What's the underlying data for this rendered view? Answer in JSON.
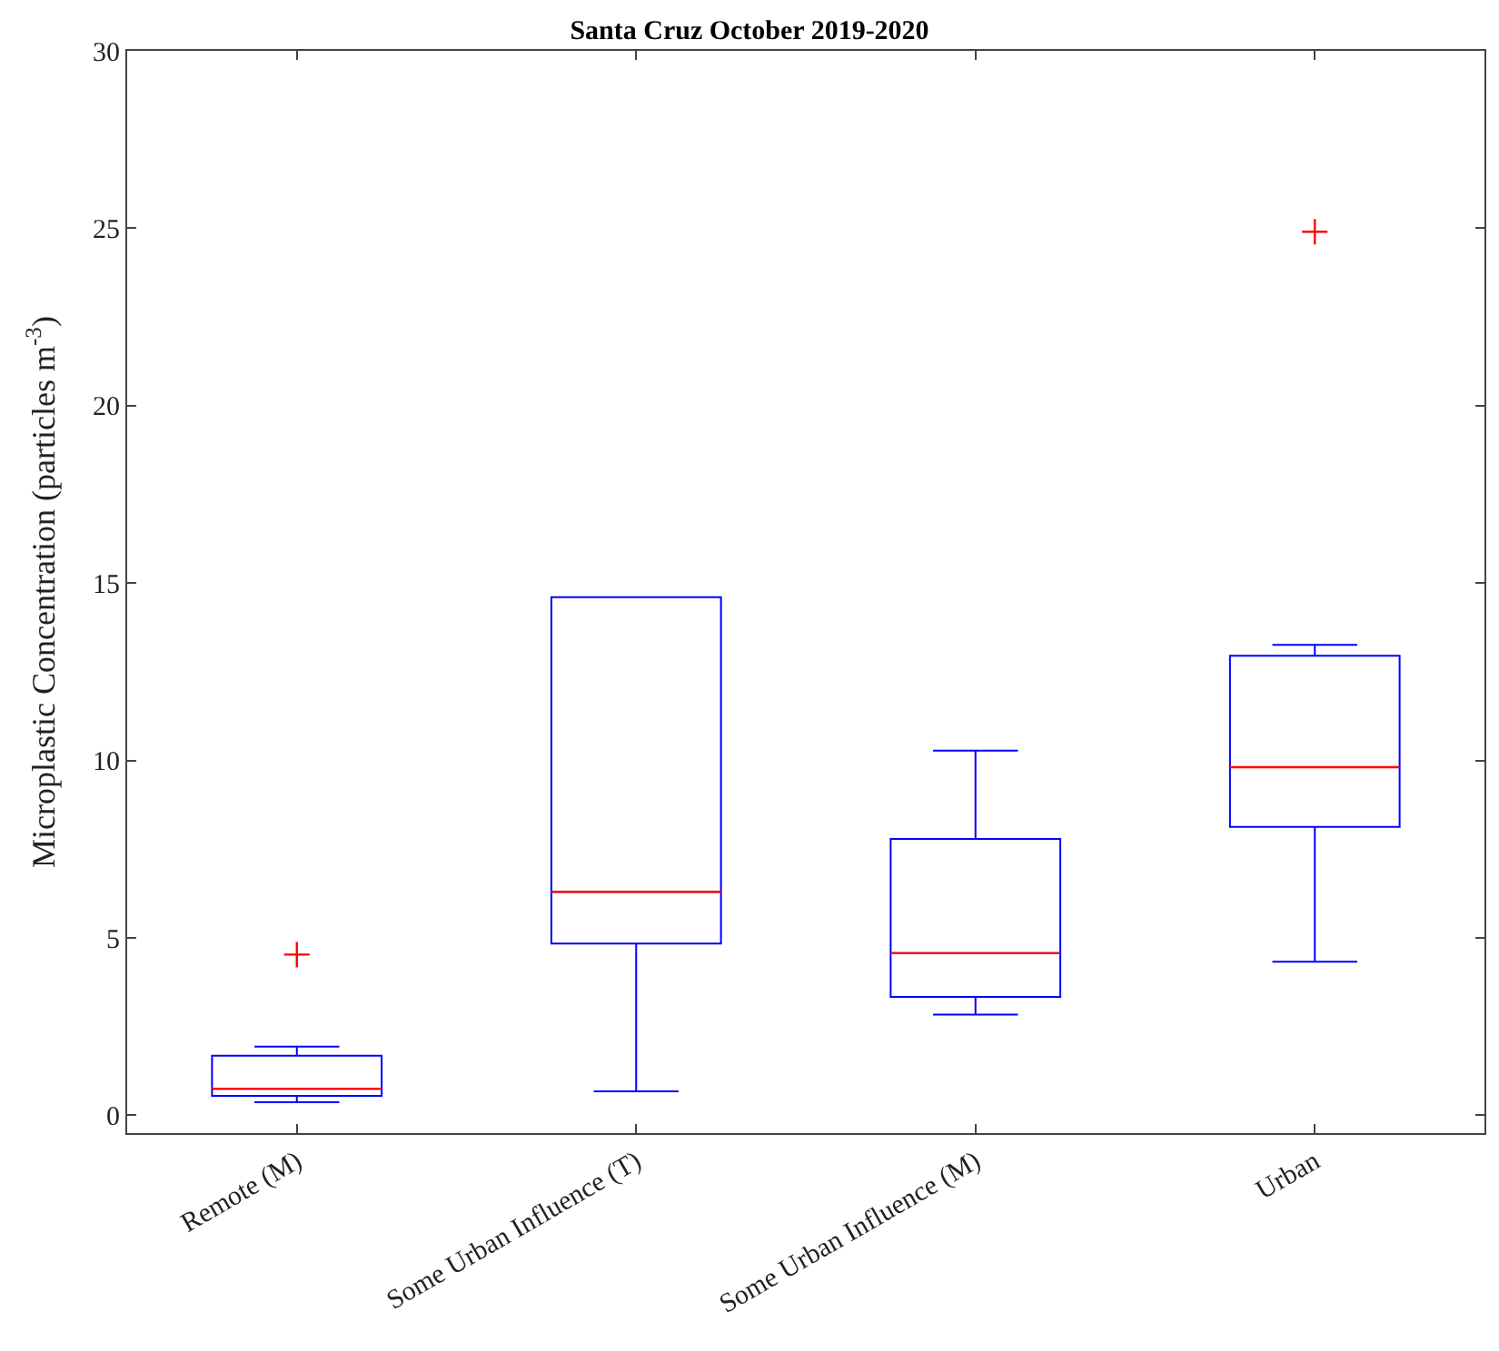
{
  "chart_data": {
    "type": "box",
    "title": "Santa Cruz October 2019-2020",
    "ylabel": "Microplastic Concentration (particles m$^{-3}$)",
    "categories": [
      "Remote (M)",
      "Some Urban Influence (T)",
      "Some Urban Influence (M)",
      "Urban"
    ],
    "boxes": [
      {
        "low": 0.37,
        "q1": 0.55,
        "median": 0.75,
        "q3": 1.68,
        "high": 1.94,
        "outliers": [
          4.53
        ]
      },
      {
        "low": 0.68,
        "q1": 4.84,
        "median": 6.3,
        "q3": 14.6,
        "high": 14.6
      },
      {
        "low": 2.84,
        "q1": 3.34,
        "median": 4.57,
        "q3": 7.79,
        "high": 10.28
      },
      {
        "low": 4.33,
        "q1": 8.13,
        "median": 9.81,
        "q3": 12.95,
        "high": 13.26,
        "outliers": [
          24.9
        ]
      }
    ],
    "color": "#0000ff",
    "marker": "cross",
    "ylim": [
      -0.5,
      30
    ],
    "yticks": [
      0,
      5,
      10,
      15,
      20,
      25,
      30
    ]
  }
}
